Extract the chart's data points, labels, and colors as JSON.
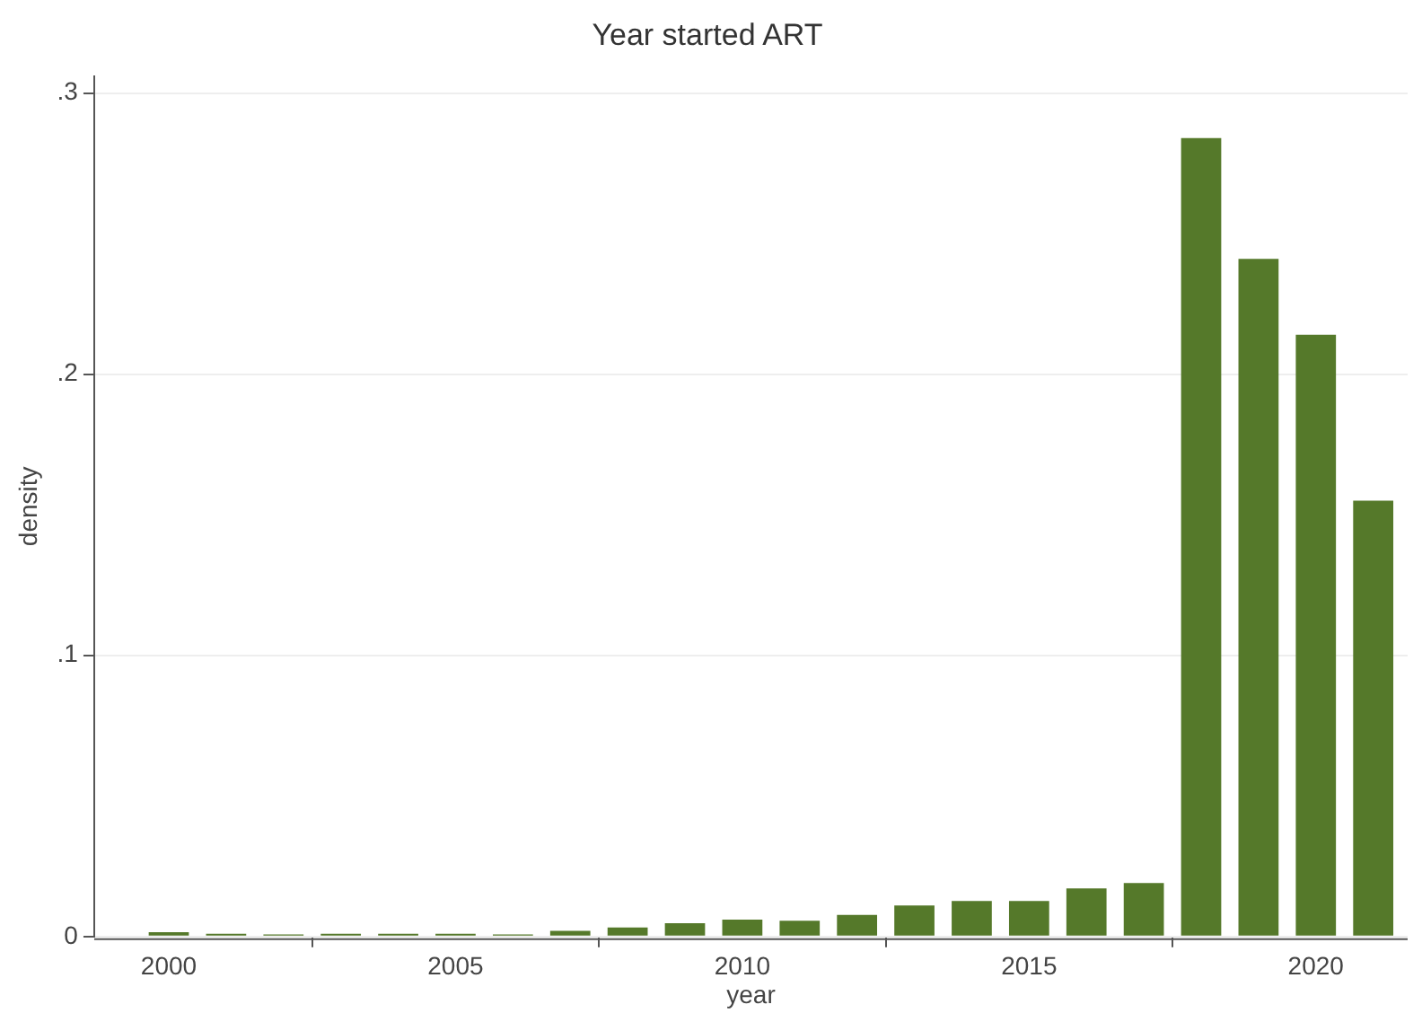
{
  "chart_data": {
    "type": "bar",
    "title": "Year started ART",
    "xlabel": "year",
    "ylabel": "density",
    "x": [
      2000,
      2001,
      2002,
      2003,
      2004,
      2005,
      2006,
      2007,
      2008,
      2009,
      2010,
      2011,
      2012,
      2013,
      2014,
      2015,
      2016,
      2017,
      2018,
      2019,
      2020,
      2021
    ],
    "values": [
      0.0015,
      0.001,
      0.0007,
      0.001,
      0.001,
      0.001,
      0.0007,
      0.002,
      0.0032,
      0.0047,
      0.006,
      0.0056,
      0.0077,
      0.011,
      0.0126,
      0.0126,
      0.0171,
      0.019,
      0.284,
      0.241,
      0.214,
      0.155
    ],
    "color": "#55792a",
    "xlim": [
      1998.7,
      2021.6
    ],
    "xticks": [
      2000,
      2005,
      2010,
      2015,
      2020
    ],
    "ylim": [
      0,
      0.306
    ],
    "yticks": [
      {
        "value": 0,
        "label": "0"
      },
      {
        "value": 0.1,
        "label": ".1"
      },
      {
        "value": 0.2,
        "label": ".2"
      },
      {
        "value": 0.3,
        "label": ".3"
      }
    ],
    "grid": "y"
  }
}
